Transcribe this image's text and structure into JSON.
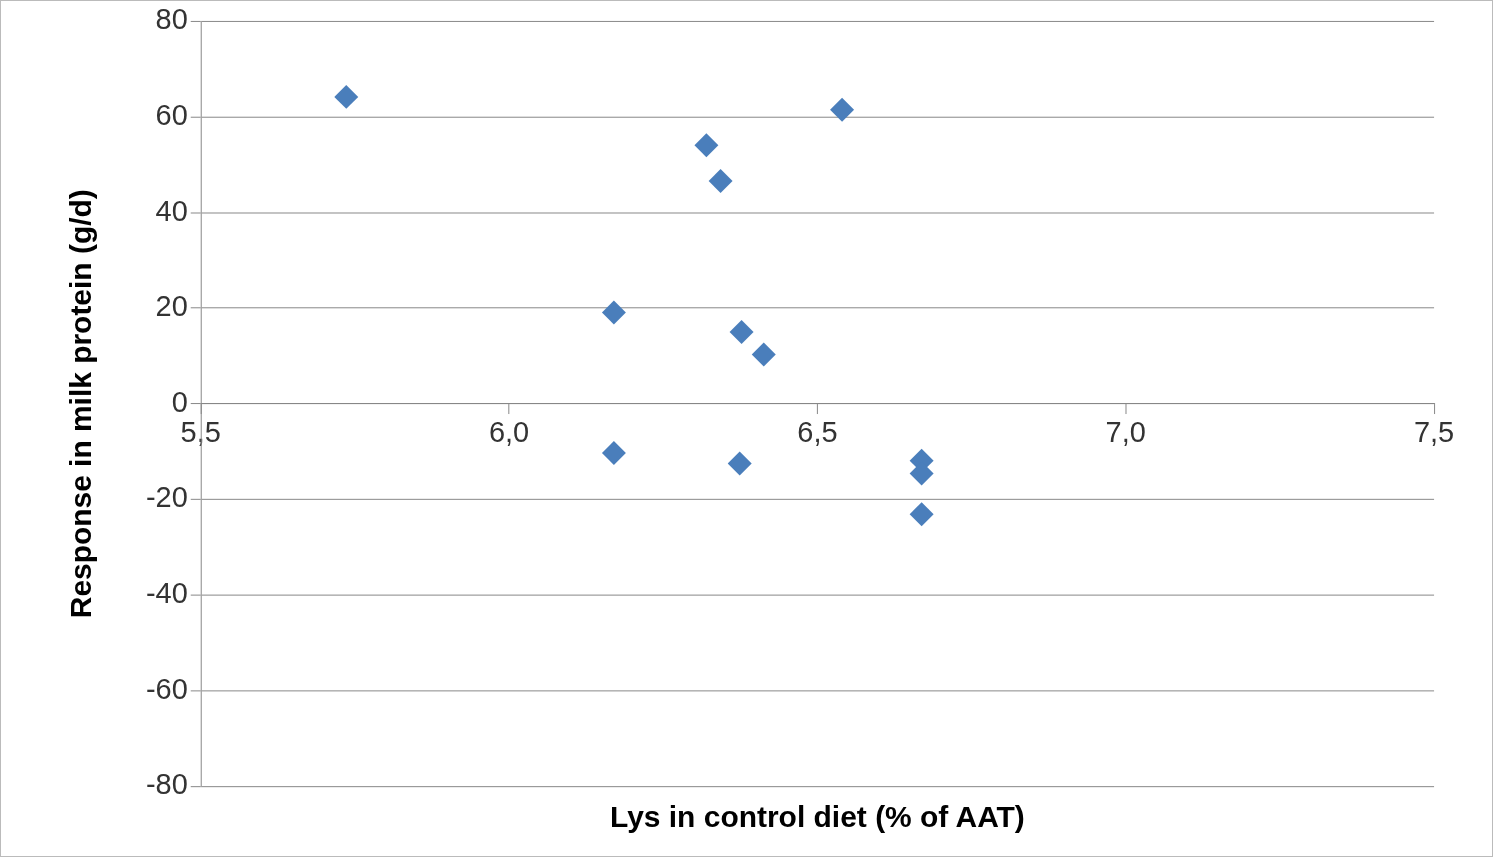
{
  "chart_data": {
    "type": "scatter",
    "xlabel": "Lys in control diet (% of AAT)",
    "ylabel": "Response in milk protein (g/d)",
    "x": [
      5.736,
      6.54,
      6.32,
      6.343,
      6.17,
      6.377,
      6.413,
      6.17,
      6.374,
      6.669,
      6.669,
      6.669
    ],
    "values": [
      64.2,
      61.5,
      54.1,
      46.6,
      19.1,
      15.0,
      10.3,
      -10.3,
      -12.5,
      -11.9,
      -14.6,
      -23.1
    ],
    "color": "#4a7ebb",
    "marker": "diamond",
    "grid": "y",
    "xlim": [
      5.5,
      7.5
    ],
    "xticks": [
      {
        "value": 5.5,
        "label": "5,5"
      },
      {
        "value": 6.0,
        "label": "6,0"
      },
      {
        "value": 6.5,
        "label": "6,5"
      },
      {
        "value": 7.0,
        "label": "7,0"
      },
      {
        "value": 7.5,
        "label": "7,5"
      }
    ],
    "ylim": [
      -80,
      80
    ],
    "yticks": [
      -80,
      -60,
      -40,
      -20,
      0,
      20,
      40,
      60,
      80
    ]
  }
}
